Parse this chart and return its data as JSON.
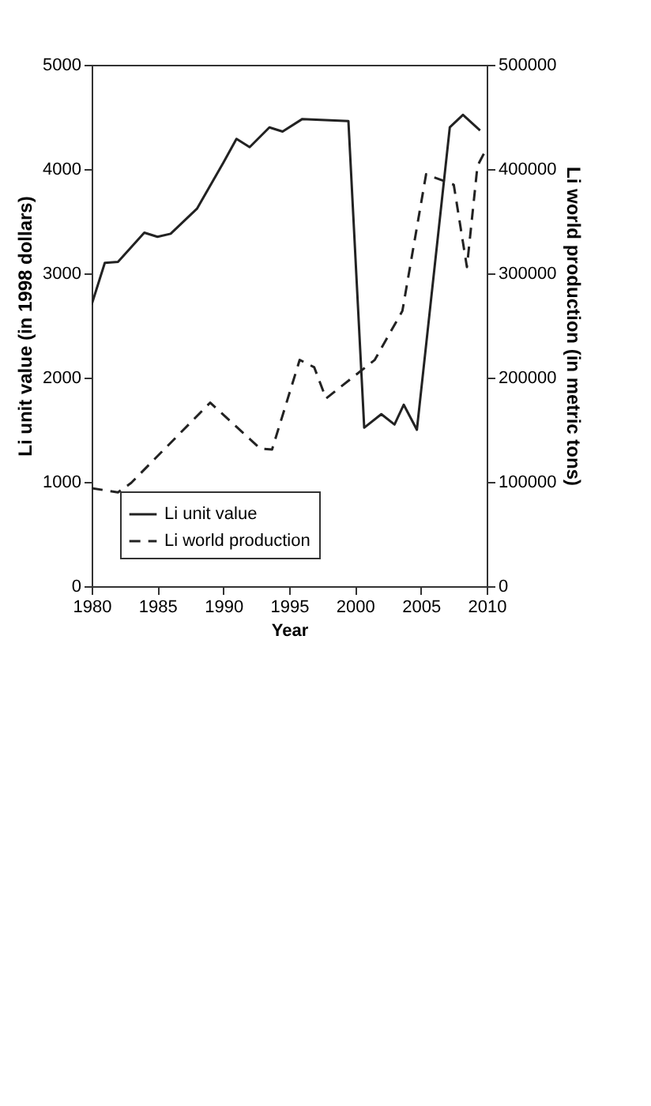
{
  "chart_data": {
    "type": "line",
    "xlabel": "Year",
    "ylabel": "Li unit value (in 1998 dollars)",
    "y2label": "Li world production (in metric tons)",
    "xlim": [
      1980,
      2010
    ],
    "xticks": [
      1980,
      1985,
      1990,
      1995,
      2000,
      2005,
      2010
    ],
    "ylim": [
      0,
      5000
    ],
    "yticks": [
      0,
      1000,
      2000,
      3000,
      4000,
      5000
    ],
    "y2lim": [
      0,
      500000
    ],
    "y2ticks": [
      0,
      100000,
      200000,
      300000,
      400000,
      500000
    ],
    "legend": "bottom left",
    "grid": false,
    "series": [
      {
        "name": "Li unit value",
        "color": "#222222",
        "line_style": "solid",
        "x": [
          1980,
          1981,
          1982,
          1984,
          1985,
          1986,
          1988,
          1990,
          1991,
          1992,
          1993.5,
          1994.5,
          1996,
          1999.5,
          2000.7,
          2002,
          2003,
          2003.7,
          2004.7,
          2007.2,
          2008.2,
          2009.5
        ],
        "values": [
          2700,
          3100,
          3110,
          3390,
          3350,
          3380,
          3620,
          4060,
          4290,
          4210,
          4400,
          4360,
          4480,
          4460,
          1520,
          1650,
          1550,
          1740,
          1500,
          4400,
          4520,
          4370
        ]
      },
      {
        "name": "Li world production",
        "color": "#222222",
        "line_style": "dashed",
        "axis": "y2",
        "x": [
          1980,
          1982,
          1983,
          1989,
          1992.8,
          1993.7,
          1995.8,
          1996.9,
          1997.8,
          2001.5,
          2003.6,
          2005.4,
          2007.5,
          2008.5,
          2009.3,
          2010
        ],
        "values": [
          94000,
          90000,
          99000,
          176000,
          132000,
          131000,
          217000,
          210000,
          180000,
          217000,
          264000,
          395000,
          385000,
          306000,
          403000,
          420000
        ]
      }
    ]
  }
}
